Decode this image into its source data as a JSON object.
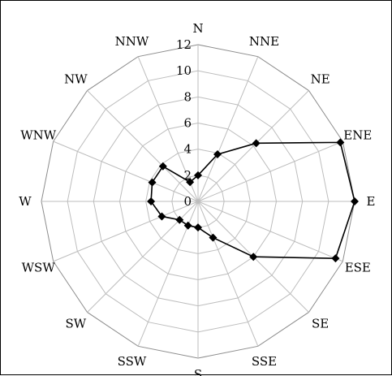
{
  "chart_data": {
    "type": "radar",
    "title": "",
    "directions": [
      "N",
      "NNE",
      "NE",
      "ENE",
      "E",
      "ESE",
      "SE",
      "SSE",
      "S",
      "SSW",
      "SW",
      "WSW",
      "W",
      "WNW",
      "NW",
      "NNW"
    ],
    "radial_ticks": [
      "0",
      "2",
      "4",
      "6",
      "8",
      "10",
      "12"
    ],
    "rlim": [
      0,
      12
    ],
    "grid": true,
    "legend": "none",
    "series": [
      {
        "values": [
          2.0,
          3.9,
          6.3,
          11.8,
          12.0,
          11.4,
          6.0,
          3.0,
          2.0,
          2.0,
          2.0,
          3.0,
          3.6,
          3.8,
          3.8,
          1.6
        ],
        "color": "#000000"
      }
    ]
  }
}
